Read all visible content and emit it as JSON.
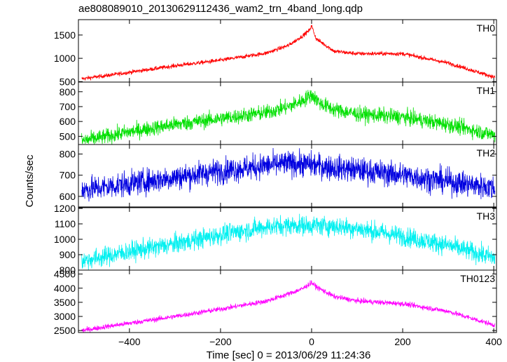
{
  "chart_data": {
    "type": "line",
    "title": "ae808089010_20130629112436_wam2_trn_4band_long.qdp",
    "xlabel": "Time [sec] 0 = 2013/06/29 11:24:36",
    "ylabel": "Counts/sec",
    "xlim": [
      -512,
      406
    ],
    "xticks": [
      -400,
      -200,
      0,
      200,
      400
    ],
    "panels": [
      {
        "name": "TH0",
        "color": "#ff0000",
        "ylim": [
          490,
          1830
        ],
        "yticks": [
          500,
          1000,
          1500
        ],
        "noise": 22,
        "x": [
          -505,
          -450,
          -400,
          -300,
          -200,
          -100,
          -50,
          -20,
          -5,
          0,
          10,
          50,
          100,
          200,
          300,
          400
        ],
        "y": [
          560,
          630,
          700,
          840,
          960,
          1110,
          1280,
          1480,
          1600,
          1700,
          1420,
          1150,
          1100,
          1100,
          900,
          600
        ]
      },
      {
        "name": "TH1",
        "color": "#00e000",
        "ylim": [
          445,
          865
        ],
        "yticks": [
          500,
          600,
          700,
          800
        ],
        "noise": 26,
        "x": [
          -505,
          -450,
          -400,
          -300,
          -200,
          -100,
          -50,
          -20,
          0,
          20,
          50,
          100,
          200,
          300,
          400
        ],
        "y": [
          470,
          500,
          530,
          580,
          620,
          660,
          700,
          740,
          780,
          720,
          680,
          650,
          630,
          580,
          510
        ]
      },
      {
        "name": "TH2",
        "color": "#0000e0",
        "ylim": [
          550,
          845
        ],
        "yticks": [
          600,
          700,
          800
        ],
        "noise": 30,
        "x": [
          -505,
          -450,
          -400,
          -300,
          -200,
          -100,
          -50,
          0,
          50,
          100,
          200,
          300,
          400
        ],
        "y": [
          630,
          645,
          660,
          690,
          720,
          745,
          755,
          750,
          735,
          725,
          700,
          670,
          640
        ]
      },
      {
        "name": "TH3",
        "color": "#00f0f0",
        "ylim": [
          800,
          1205
        ],
        "yticks": [
          800,
          900,
          1000,
          1100,
          1200
        ],
        "noise": 32,
        "x": [
          -505,
          -450,
          -400,
          -300,
          -200,
          -100,
          -50,
          0,
          50,
          100,
          200,
          300,
          400
        ],
        "y": [
          860,
          890,
          920,
          970,
          1030,
          1080,
          1090,
          1090,
          1085,
          1070,
          1020,
          960,
          880
        ]
      },
      {
        "name": "TH0123",
        "color": "#ff00ff",
        "ylim": [
          2430,
          4640
        ],
        "yticks": [
          2500,
          3000,
          3500,
          4000,
          4500
        ],
        "noise": 45,
        "x": [
          -505,
          -450,
          -400,
          -300,
          -200,
          -100,
          -50,
          -20,
          0,
          10,
          50,
          100,
          200,
          300,
          400
        ],
        "y": [
          2500,
          2640,
          2760,
          3000,
          3260,
          3540,
          3800,
          3980,
          4200,
          4050,
          3700,
          3550,
          3450,
          3180,
          2700
        ]
      }
    ]
  }
}
